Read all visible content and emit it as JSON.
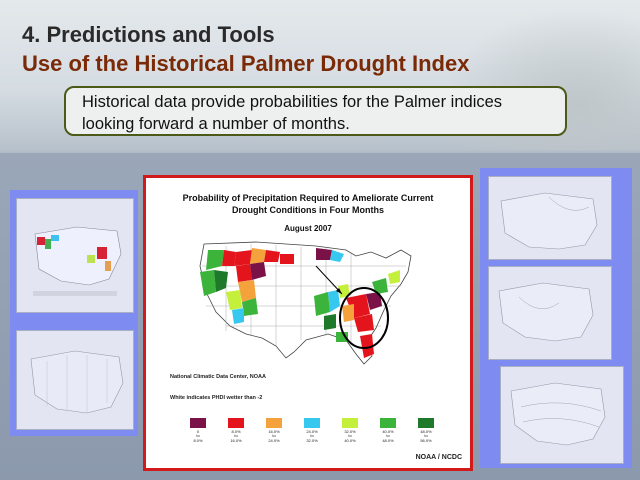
{
  "slide": {
    "title_line1": "4. Predictions and Tools",
    "title_line2": "Use of the Historical Palmer Drought Index",
    "callout_line1": "Historical data provide probabilities for the Palmer indices",
    "callout_line2": "looking forward a number of months."
  },
  "main_figure": {
    "title_line1": "Probability of Precipitation Required to Ameliorate Current",
    "title_line2": "Drought Conditions in Four Months",
    "date": "August 2007",
    "source": "National Climatic Data Center, NOAA",
    "note": "White indicates PHDI wetter than -2",
    "credit": "NOAA / NCDC",
    "legend": [
      {
        "top": "0",
        "mid": "to",
        "bottom": "8.0%",
        "color": "#7a1248"
      },
      {
        "top": "8.0%",
        "mid": "to",
        "bottom": "16.0%",
        "color": "#e4141c"
      },
      {
        "top": "16.0%",
        "mid": "to",
        "bottom": "24.0%",
        "color": "#f4a23c"
      },
      {
        "top": "24.0%",
        "mid": "to",
        "bottom": "32.0%",
        "color": "#36c8ee"
      },
      {
        "top": "32.0%",
        "mid": "to",
        "bottom": "40.0%",
        "color": "#c4f03c"
      },
      {
        "top": "40.0%",
        "mid": "to",
        "bottom": "48.0%",
        "color": "#3cb43c"
      },
      {
        "top": "48.0%",
        "mid": "to",
        "bottom": "56.0%",
        "color": "#1e7a2a"
      }
    ]
  },
  "colors": {
    "title_dark": "#2a2a2a",
    "title_brown": "#7a2a06",
    "callout_border": "#4c5a18",
    "figure_border": "#d21a1a",
    "highlight_circle": "#000000"
  }
}
